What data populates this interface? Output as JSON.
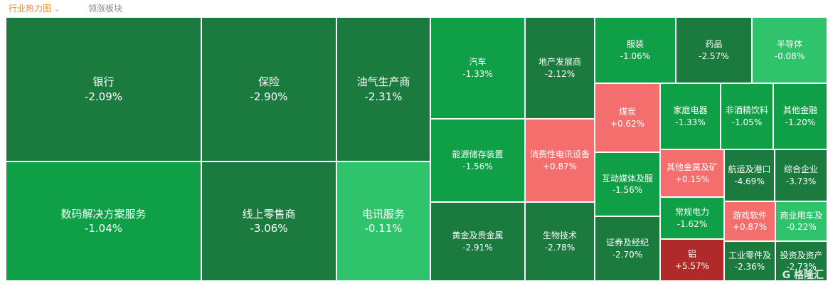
{
  "tabs": [
    {
      "label": "行业热力图",
      "chevron": "⌄"
    },
    {
      "label": "领涨板块"
    }
  ],
  "colors": {
    "dark_green": "#1b7a3d",
    "green": "#0f9f46",
    "light_green": "#2fc46b",
    "pink": "#f46e6e",
    "red": "#b02a2a",
    "active_tab": "#f08a24"
  },
  "cells": [
    {
      "name": "银行",
      "change": "-2.09%"
    },
    {
      "name": "数码解决方案服务",
      "change": "-1.04%"
    },
    {
      "name": "保险",
      "change": "-2.90%"
    },
    {
      "name": "线上零售商",
      "change": "-3.06%"
    },
    {
      "name": "油气生产商",
      "change": "-2.31%"
    },
    {
      "name": "电讯服务",
      "change": "-0.11%"
    },
    {
      "name": "汽车",
      "change": "-1.33%"
    },
    {
      "name": "能源储存装置",
      "change": "-1.56%"
    },
    {
      "name": "黄金及贵金属",
      "change": "-2.91%"
    },
    {
      "name": "地产发展商",
      "change": "-2.12%"
    },
    {
      "name": "消费性电讯设备",
      "change": "+0.87%"
    },
    {
      "name": "生物技术",
      "change": "-2.78%"
    },
    {
      "name": "服装",
      "change": "-1.06%"
    },
    {
      "name": "药品",
      "change": "-2.57%"
    },
    {
      "name": "半导体",
      "change": "-0.08%"
    },
    {
      "name": "煤炭",
      "change": "+0.62%"
    },
    {
      "name": "互动媒体及服",
      "change": "-1.56%"
    },
    {
      "name": "证券及经纪",
      "change": "-2.70%"
    },
    {
      "name": "家庭电器",
      "change": "-1.33%"
    },
    {
      "name": "非酒精饮料",
      "change": "-1.05%"
    },
    {
      "name": "其他金融",
      "change": "-1.20%"
    },
    {
      "name": "其他金属及矿",
      "change": "+0.15%"
    },
    {
      "name": "常规电力",
      "change": "-1.62%"
    },
    {
      "name": "铝",
      "change": "+5.57%"
    },
    {
      "name": "航运及港口",
      "change": "-4.69%"
    },
    {
      "name": "综合企业",
      "change": "-3.73%"
    },
    {
      "name": "游戏软件",
      "change": "+0.87%"
    },
    {
      "name": "商业用车及",
      "change": "-0.22%"
    },
    {
      "name": "工业零件及",
      "change": "-2.36%"
    },
    {
      "name": "投资及资产",
      "change": "-2.73%"
    }
  ],
  "watermark": "G 格隆汇"
}
